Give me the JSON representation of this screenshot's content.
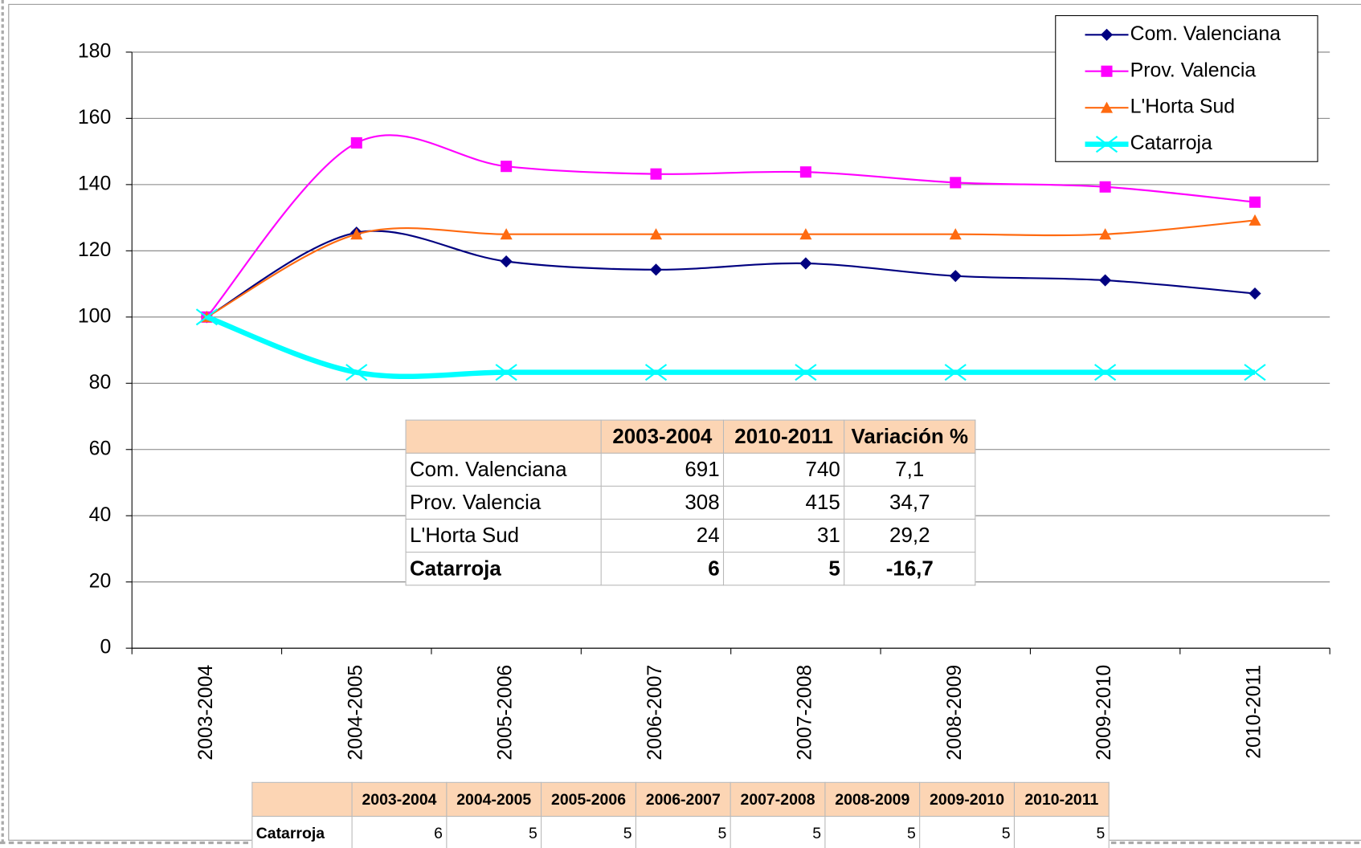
{
  "chart_data": {
    "type": "line",
    "categories": [
      "2003-2004",
      "2004-2005",
      "2005-2006",
      "2006-2007",
      "2007-2008",
      "2008-2009",
      "2009-2010",
      "2010-2011"
    ],
    "series": [
      {
        "name": "Com. Valenciana",
        "color": "#000080",
        "marker": "diamond",
        "width": 2,
        "values": [
          100,
          125.5,
          116.8,
          114.3,
          116.2,
          112.4,
          111.1,
          107.1
        ]
      },
      {
        "name": "Prov. Valencia",
        "color": "#ff00ff",
        "marker": "square",
        "width": 2,
        "values": [
          100,
          152.6,
          145.5,
          143.2,
          143.8,
          140.6,
          139.3,
          134.7
        ]
      },
      {
        "name": "L'Horta Sud",
        "color": "#ff6a10",
        "marker": "triangle",
        "width": 2,
        "values": [
          100,
          125,
          125,
          125,
          125,
          125,
          125,
          129.2
        ]
      },
      {
        "name": "Catarroja",
        "color": "#00ffff",
        "marker": "x",
        "width": 6,
        "values": [
          100,
          83.3,
          83.3,
          83.3,
          83.3,
          83.3,
          83.3,
          83.3
        ]
      }
    ],
    "ylim": [
      0,
      180
    ],
    "yticks": [
      0,
      20,
      40,
      60,
      80,
      100,
      120,
      140,
      160,
      180
    ],
    "grid": true,
    "smooth": true,
    "legend": "top-right"
  },
  "summary_table": {
    "header": [
      "2003-2004",
      "2010-2011",
      "Variación %"
    ],
    "rows": [
      [
        "Com. Valenciana",
        "691",
        "740",
        "7,1"
      ],
      [
        "Prov. Valencia",
        "308",
        "415",
        "34,7"
      ],
      [
        "L'Horta Sud",
        "24",
        "31",
        "29,2"
      ],
      [
        "Catarroja",
        "6",
        "5",
        "-16,7"
      ]
    ]
  },
  "bottom_table": {
    "header": [
      "2003-2004",
      "2004-2005",
      "2005-2006",
      "2006-2007",
      "2007-2008",
      "2008-2009",
      "2009-2010",
      "2010-2011"
    ],
    "rows": [
      [
        "Catarroja",
        "6",
        "5",
        "5",
        "5",
        "5",
        "5",
        "5",
        "5"
      ]
    ]
  }
}
